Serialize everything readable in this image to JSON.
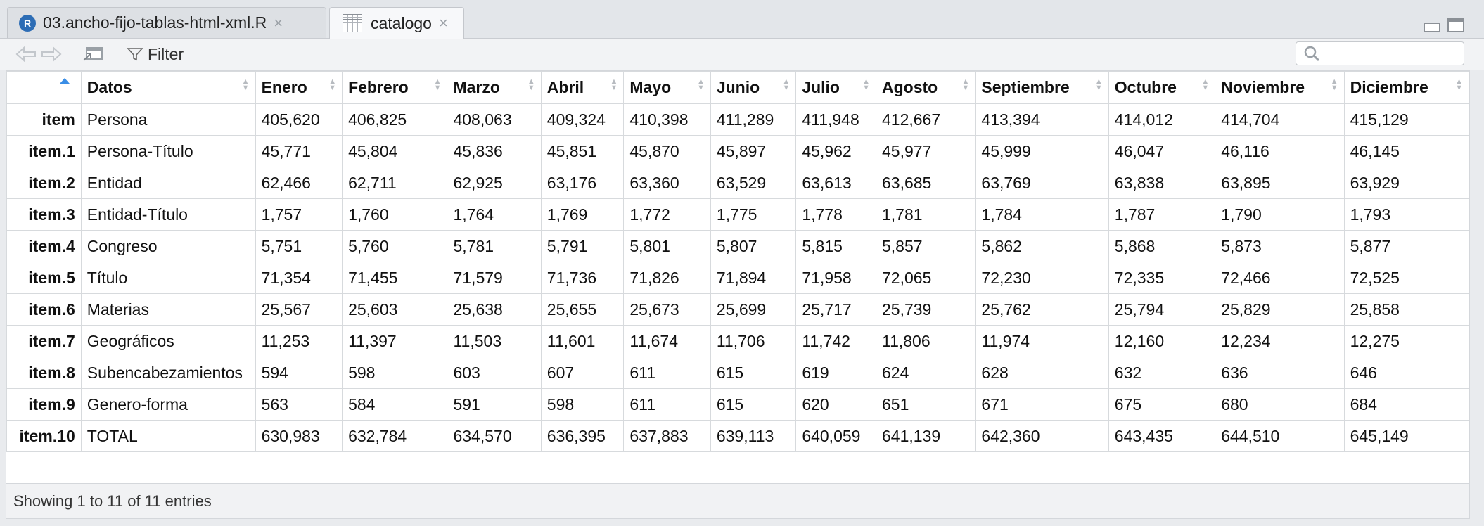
{
  "tabs": [
    {
      "label": "03.ancho-fijo-tablas-html-xml.R",
      "icon": "r-file-icon",
      "close": "×"
    },
    {
      "label": "catalogo",
      "icon": "data-grid-icon",
      "close": "×"
    }
  ],
  "toolbar": {
    "filter_label": "Filter",
    "search_placeholder": ""
  },
  "table": {
    "columns": [
      "Datos",
      "Enero",
      "Febrero",
      "Marzo",
      "Abril",
      "Mayo",
      "Junio",
      "Julio",
      "Agosto",
      "Septiembre",
      "Octubre",
      "Noviembre",
      "Diciembre"
    ],
    "rows": [
      {
        "name": "item",
        "cells": [
          "Persona",
          "405,620",
          "406,825",
          "408,063",
          "409,324",
          "410,398",
          "411,289",
          "411,948",
          "412,667",
          "413,394",
          "414,012",
          "414,704",
          "415,129"
        ]
      },
      {
        "name": "item.1",
        "cells": [
          "Persona-Título",
          "45,771",
          "45,804",
          "45,836",
          "45,851",
          "45,870",
          "45,897",
          "45,962",
          "45,977",
          "45,999",
          "46,047",
          "46,116",
          "46,145"
        ]
      },
      {
        "name": "item.2",
        "cells": [
          "Entidad",
          "62,466",
          "62,711",
          "62,925",
          "63,176",
          "63,360",
          "63,529",
          "63,613",
          "63,685",
          "63,769",
          "63,838",
          "63,895",
          "63,929"
        ]
      },
      {
        "name": "item.3",
        "cells": [
          "Entidad-Título",
          "1,757",
          "1,760",
          "1,764",
          "1,769",
          "1,772",
          "1,775",
          "1,778",
          "1,781",
          "1,784",
          "1,787",
          "1,790",
          "1,793"
        ]
      },
      {
        "name": "item.4",
        "cells": [
          "Congreso",
          "5,751",
          "5,760",
          "5,781",
          "5,791",
          "5,801",
          "5,807",
          "5,815",
          "5,857",
          "5,862",
          "5,868",
          "5,873",
          "5,877"
        ]
      },
      {
        "name": "item.5",
        "cells": [
          "Título",
          "71,354",
          "71,455",
          "71,579",
          "71,736",
          "71,826",
          "71,894",
          "71,958",
          "72,065",
          "72,230",
          "72,335",
          "72,466",
          "72,525"
        ]
      },
      {
        "name": "item.6",
        "cells": [
          "Materias",
          "25,567",
          "25,603",
          "25,638",
          "25,655",
          "25,673",
          "25,699",
          "25,717",
          "25,739",
          "25,762",
          "25,794",
          "25,829",
          "25,858"
        ]
      },
      {
        "name": "item.7",
        "cells": [
          "Geográficos",
          "11,253",
          "11,397",
          "11,503",
          "11,601",
          "11,674",
          "11,706",
          "11,742",
          "11,806",
          "11,974",
          "12,160",
          "12,234",
          "12,275"
        ]
      },
      {
        "name": "item.8",
        "cells": [
          "Subencabezamientos",
          "594",
          "598",
          "603",
          "607",
          "611",
          "615",
          "619",
          "624",
          "628",
          "632",
          "636",
          "646"
        ]
      },
      {
        "name": "item.9",
        "cells": [
          "Genero-forma",
          "563",
          "584",
          "591",
          "598",
          "611",
          "615",
          "620",
          "651",
          "671",
          "675",
          "680",
          "684"
        ]
      },
      {
        "name": "item.10",
        "cells": [
          "TOTAL",
          "630,983",
          "632,784",
          "634,570",
          "636,395",
          "637,883",
          "639,113",
          "640,059",
          "641,139",
          "642,360",
          "643,435",
          "644,510",
          "645,149"
        ]
      }
    ]
  },
  "footer": {
    "status": "Showing 1 to 11 of 11 entries"
  }
}
